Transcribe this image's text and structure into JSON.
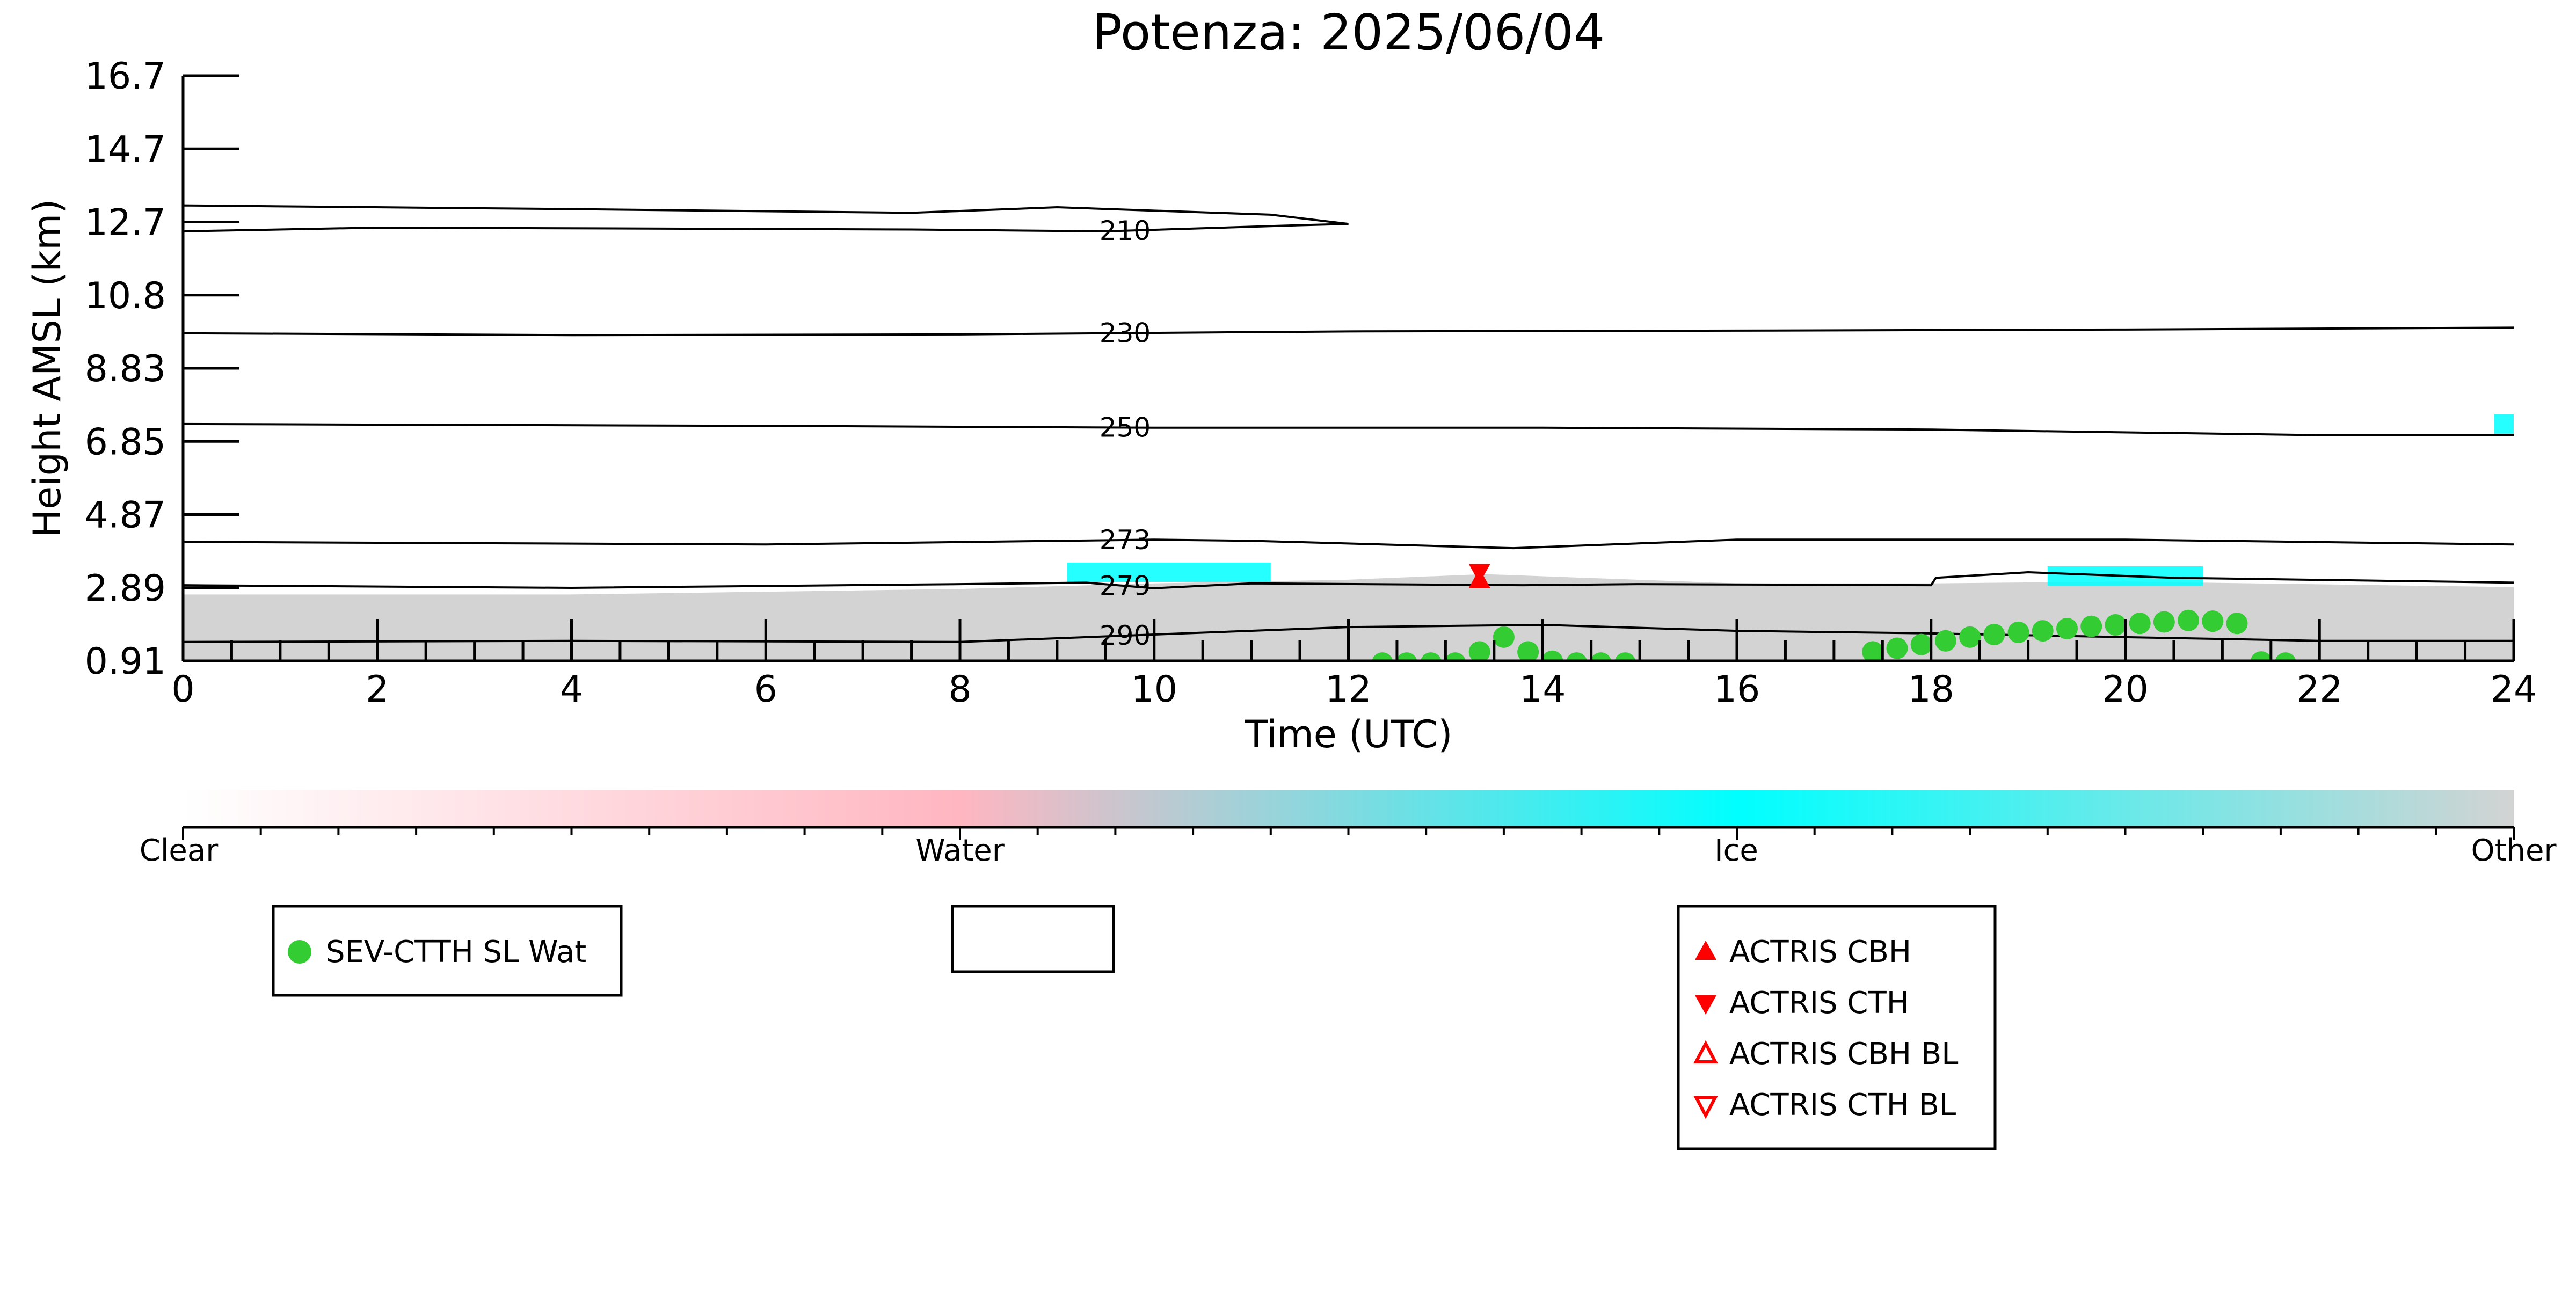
{
  "chart_data": {
    "type": "scatter",
    "title": "Potenza: 2025/06/04",
    "xlabel": "Time (UTC)",
    "ylabel": "Height AMSL (km)",
    "xlim": [
      0,
      24
    ],
    "ylim": [
      0.91,
      16.7
    ],
    "x_ticks": [
      "0",
      "2",
      "4",
      "6",
      "8",
      "10",
      "12",
      "14",
      "16",
      "18",
      "20",
      "22",
      "24"
    ],
    "y_ticks": [
      "0.91",
      "2.89",
      "4.87",
      "6.85",
      "8.83",
      "10.8",
      "12.7",
      "14.7",
      "16.7"
    ],
    "background_classification": {
      "description_colors": {
        "Clear": "#ffffff",
        "Water": "#ffb6c1",
        "Ice": "#00ffff",
        "Other": "#d3d3d3"
      },
      "other_layer_top_km": [
        [
          0,
          2.7
        ],
        [
          4,
          2.7
        ],
        [
          8,
          2.85
        ],
        [
          10,
          3.0
        ],
        [
          12,
          3.1
        ],
        [
          13.4,
          3.25
        ],
        [
          16,
          3.0
        ],
        [
          18,
          3.0
        ],
        [
          20,
          3.05
        ],
        [
          24,
          2.9
        ]
      ],
      "ice_patches": [
        {
          "x_start": 9.1,
          "x_end": 11.2,
          "height_km": 3.3
        },
        {
          "x_start": 19.2,
          "x_end": 20.8,
          "height_km": 3.2
        },
        {
          "x_start": 23.8,
          "x_end": 24.0,
          "height_km": 7.3
        }
      ]
    },
    "contours": [
      {
        "label": "210",
        "label_x": 9.7,
        "top": [
          [
            0,
            13.2
          ],
          [
            4,
            13.1
          ],
          [
            7.5,
            13.0
          ],
          [
            9.0,
            13.15
          ],
          [
            11.2,
            12.95
          ],
          [
            12.0,
            12.7
          ]
        ],
        "bottom": [
          [
            0,
            12.5
          ],
          [
            2,
            12.6
          ],
          [
            7.5,
            12.55
          ],
          [
            9.5,
            12.5
          ],
          [
            11.3,
            12.65
          ],
          [
            12.0,
            12.7
          ]
        ]
      },
      {
        "label": "230",
        "label_x": 9.7,
        "points": [
          [
            0,
            9.75
          ],
          [
            4,
            9.7
          ],
          [
            8,
            9.72
          ],
          [
            12,
            9.8
          ],
          [
            16,
            9.82
          ],
          [
            20,
            9.85
          ],
          [
            24,
            9.9
          ]
        ]
      },
      {
        "label": "250",
        "label_x": 9.7,
        "points": [
          [
            0,
            7.3
          ],
          [
            6,
            7.25
          ],
          [
            10,
            7.2
          ],
          [
            14,
            7.2
          ],
          [
            18,
            7.15
          ],
          [
            22,
            7.0
          ],
          [
            24,
            7.0
          ]
        ]
      },
      {
        "label": "273",
        "label_x": 9.7,
        "points": [
          [
            0,
            4.12
          ],
          [
            6,
            4.05
          ],
          [
            10,
            4.18
          ],
          [
            11,
            4.15
          ],
          [
            13.7,
            3.95
          ],
          [
            16,
            4.18
          ],
          [
            20,
            4.18
          ],
          [
            24,
            4.05
          ]
        ]
      },
      {
        "label": "279",
        "label_x": 9.7,
        "points": [
          [
            0,
            2.95
          ],
          [
            4,
            2.88
          ],
          [
            8,
            2.98
          ],
          [
            9.3,
            3.02
          ],
          [
            10,
            2.87
          ],
          [
            11,
            3.0
          ],
          [
            13.8,
            2.95
          ],
          [
            15,
            2.98
          ],
          [
            18.0,
            2.95
          ],
          [
            18.05,
            3.15
          ],
          [
            19,
            3.3
          ],
          [
            20.5,
            3.15
          ],
          [
            24,
            3.02
          ]
        ]
      },
      {
        "label": "290",
        "label_x": 9.7,
        "points": [
          [
            0,
            1.42
          ],
          [
            4,
            1.45
          ],
          [
            8,
            1.42
          ],
          [
            10,
            1.62
          ],
          [
            12,
            1.82
          ],
          [
            14,
            1.88
          ],
          [
            16,
            1.72
          ],
          [
            18,
            1.65
          ],
          [
            20,
            1.55
          ],
          [
            22,
            1.45
          ],
          [
            24,
            1.45
          ]
        ]
      }
    ],
    "series": [
      {
        "name": "SEV-CTTH SL Wat",
        "color": "#33cc33",
        "x": [
          12.35,
          12.6,
          12.85,
          13.1,
          13.35,
          13.6,
          13.85,
          14.1,
          14.35,
          14.6,
          14.85,
          17.4,
          17.65,
          17.9,
          18.15,
          18.4,
          18.65,
          18.9,
          19.15,
          19.4,
          19.65,
          19.9,
          20.15,
          20.4,
          20.65,
          20.9,
          21.15,
          21.4,
          21.65
        ],
        "y": [
          0.85,
          0.85,
          0.85,
          0.85,
          1.15,
          1.55,
          1.15,
          0.9,
          0.85,
          0.85,
          0.85,
          1.15,
          1.25,
          1.35,
          1.45,
          1.55,
          1.62,
          1.68,
          1.72,
          1.78,
          1.84,
          1.88,
          1.92,
          1.96,
          2.0,
          1.98,
          1.92,
          0.88,
          0.85
        ]
      },
      {
        "name": "ACTRIS CBH",
        "color": "#ff0000",
        "x": [
          13.35
        ],
        "y": [
          3.08
        ]
      },
      {
        "name": "ACTRIS CTH",
        "color": "#ff0000",
        "x": [
          13.35
        ],
        "y": [
          3.32
        ]
      }
    ],
    "colorbar": {
      "labels": [
        "Clear",
        "Water",
        "Ice",
        "Other"
      ],
      "colors": [
        "#ffffff",
        "#ffb6c1",
        "#00ffff",
        "#d3d3d3"
      ]
    },
    "legends": [
      {
        "entries": [
          {
            "label": "SEV-CTTH SL Wat",
            "marker": "circle",
            "color": "#33cc33"
          }
        ]
      },
      {
        "entries": []
      },
      {
        "entries": [
          {
            "label": "ACTRIS CBH",
            "marker": "triangle-up-filled",
            "color": "#ff0000"
          },
          {
            "label": "ACTRIS CTH",
            "marker": "triangle-down-filled",
            "color": "#ff0000"
          },
          {
            "label": "ACTRIS CBH BL",
            "marker": "triangle-up-open",
            "color": "#ff0000"
          },
          {
            "label": "ACTRIS CTH BL",
            "marker": "triangle-down-open",
            "color": "#ff0000"
          }
        ]
      }
    ]
  }
}
